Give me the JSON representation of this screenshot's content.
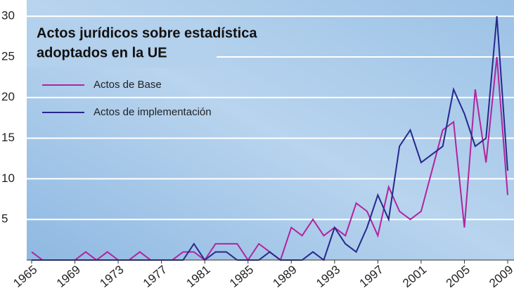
{
  "chart_data": {
    "type": "line",
    "title_lines": [
      "Actos jurídicos sobre estadística",
      "adoptados en la UE"
    ],
    "x": [
      1965,
      1966,
      1967,
      1968,
      1969,
      1970,
      1971,
      1972,
      1973,
      1974,
      1975,
      1976,
      1977,
      1978,
      1979,
      1980,
      1981,
      1982,
      1983,
      1984,
      1985,
      1986,
      1987,
      1988,
      1989,
      1990,
      1991,
      1992,
      1993,
      1994,
      1995,
      1996,
      1997,
      1998,
      1999,
      2000,
      2001,
      2002,
      2003,
      2004,
      2005,
      2006,
      2007,
      2008,
      2009
    ],
    "series": [
      {
        "name": "Actos de Base",
        "color": "#b0259e",
        "values": [
          1,
          0,
          0,
          0,
          0,
          1,
          0,
          1,
          0,
          0,
          1,
          0,
          0,
          0,
          1,
          1,
          0,
          2,
          2,
          2,
          0,
          2,
          1,
          0,
          4,
          3,
          5,
          3,
          4,
          3,
          7,
          6,
          3,
          9,
          6,
          5,
          6,
          11,
          16,
          17,
          4,
          21,
          12,
          25,
          8
        ]
      },
      {
        "name": "Actos de implementación",
        "color": "#27288c",
        "values": [
          0,
          0,
          0,
          0,
          0,
          0,
          0,
          0,
          0,
          0,
          0,
          0,
          0,
          0,
          0,
          2,
          0,
          1,
          1,
          0,
          0,
          0,
          1,
          0,
          0,
          0,
          1,
          0,
          4,
          2,
          1,
          4,
          8,
          5,
          14,
          16,
          12,
          13,
          14,
          21,
          18,
          14,
          15,
          30,
          11
        ]
      }
    ],
    "xlim": [
      1965,
      2009
    ],
    "xticks": [
      1965,
      1969,
      1973,
      1977,
      1981,
      1985,
      1989,
      1993,
      1997,
      2001,
      2005,
      2009
    ],
    "ylim": [
      0,
      32
    ],
    "yticks": [
      5,
      10,
      15,
      20,
      25,
      30
    ],
    "grid": true
  }
}
